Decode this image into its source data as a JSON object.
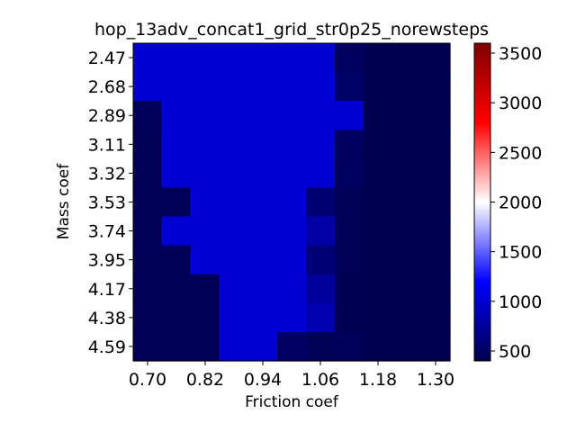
{
  "chart_data": {
    "type": "heatmap",
    "title": "hop_13adv_concat1_grid_str0p25_norewsteps",
    "xlabel": "Friction coef",
    "ylabel": "Mass coef",
    "x_tick_labels": [
      "0.70",
      "0.82",
      "0.94",
      "1.06",
      "1.18",
      "1.30"
    ],
    "y_tick_labels": [
      "2.47",
      "2.68",
      "2.89",
      "3.11",
      "3.32",
      "3.53",
      "3.74",
      "3.95",
      "4.17",
      "4.38",
      "4.59"
    ],
    "n_cols": 11,
    "n_rows": 11,
    "x_tick_columns": [
      0,
      2,
      4,
      6,
      8,
      10
    ],
    "values": [
      [
        1000,
        1000,
        1000,
        1000,
        1000,
        1000,
        1000,
        480,
        430,
        430,
        430
      ],
      [
        1000,
        1000,
        1000,
        1000,
        1000,
        1000,
        1000,
        520,
        430,
        430,
        430
      ],
      [
        470,
        1000,
        1000,
        1000,
        1000,
        1000,
        1000,
        1000,
        430,
        430,
        430
      ],
      [
        460,
        1000,
        1000,
        1000,
        1000,
        1000,
        1000,
        490,
        430,
        430,
        430
      ],
      [
        460,
        1000,
        1000,
        1000,
        1000,
        1000,
        1000,
        480,
        430,
        430,
        430
      ],
      [
        460,
        460,
        1000,
        1000,
        1000,
        1000,
        560,
        450,
        430,
        430,
        430
      ],
      [
        460,
        1000,
        1000,
        1000,
        1000,
        1000,
        800,
        450,
        430,
        430,
        430
      ],
      [
        460,
        460,
        1000,
        1000,
        1000,
        1000,
        580,
        450,
        430,
        430,
        430
      ],
      [
        450,
        450,
        450,
        1000,
        1000,
        1000,
        750,
        440,
        430,
        430,
        430
      ],
      [
        450,
        450,
        450,
        1000,
        1000,
        1000,
        850,
        440,
        430,
        430,
        430
      ],
      [
        450,
        450,
        450,
        1000,
        1000,
        500,
        460,
        470,
        430,
        430,
        430
      ]
    ],
    "colormap": "seismic",
    "colorbar": {
      "vmin": 400,
      "vmax": 3600,
      "ticks": [
        500,
        1000,
        1500,
        2000,
        2500,
        3000,
        3500
      ],
      "tick_labels": [
        "500",
        "1000",
        "1500",
        "2000",
        "2500",
        "3000",
        "3500"
      ]
    },
    "grid": false,
    "legend": "none"
  }
}
